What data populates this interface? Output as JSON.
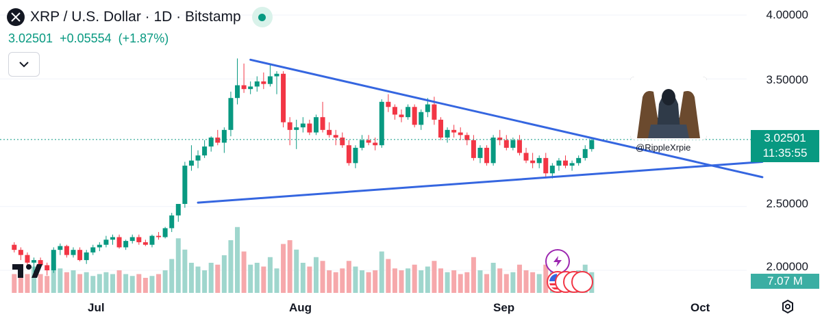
{
  "header": {
    "title": "XRP / U.S. Dollar · 1D · Bitstamp",
    "last_price": "3.02501",
    "change": "+0.05554",
    "change_pct": "(+1.87%)"
  },
  "price_tag": {
    "price": "3.02501",
    "countdown": "11:35:55"
  },
  "volume_tag": "7.07 M",
  "watermark": "@RippleXrpie",
  "colors": {
    "up": "#089981",
    "down": "#f23645",
    "up_vol": "#9fd6cd",
    "down_vol": "#f6a8ab",
    "trend": "#3566e0"
  },
  "icons": [
    "xrp-icon",
    "chevron-down-icon",
    "tradingview-logo-icon",
    "settings-icon",
    "bolt-icon",
    "us-flag-icon"
  ],
  "chart_data": {
    "type": "candlestick",
    "title": "XRP / U.S. Dollar · 1D · Bitstamp",
    "ylim": [
      1.75,
      4.2
    ],
    "y_ticks": [
      "4.00000",
      "3.50000",
      "2.50000",
      "2.00000"
    ],
    "y_tick_values": [
      4.0,
      3.5,
      2.5,
      2.0
    ],
    "x_labels": [
      "Jul",
      "Aug",
      "Sep",
      "Oct"
    ],
    "x_label_day_index": [
      15,
      46,
      77,
      107
    ],
    "start_day_index": 0,
    "ohlc": [
      [
        2.2,
        2.22,
        2.14,
        2.16
      ],
      [
        2.16,
        2.18,
        2.08,
        2.12
      ],
      [
        2.12,
        2.14,
        2.04,
        2.06
      ],
      [
        2.06,
        2.1,
        1.98,
        2.08
      ],
      [
        2.08,
        2.1,
        2.02,
        2.04
      ],
      [
        2.04,
        2.06,
        1.96,
        2.0
      ],
      [
        2.0,
        2.18,
        1.98,
        2.16
      ],
      [
        2.16,
        2.21,
        2.12,
        2.19
      ],
      [
        2.19,
        2.2,
        2.1,
        2.12
      ],
      [
        2.12,
        2.18,
        2.1,
        2.16
      ],
      [
        2.16,
        2.18,
        2.07,
        2.08
      ],
      [
        2.08,
        2.16,
        2.05,
        2.14
      ],
      [
        2.14,
        2.2,
        2.12,
        2.18
      ],
      [
        2.18,
        2.22,
        2.15,
        2.2
      ],
      [
        2.2,
        2.27,
        2.18,
        2.24
      ],
      [
        2.24,
        2.28,
        2.2,
        2.26
      ],
      [
        2.26,
        2.28,
        2.17,
        2.18
      ],
      [
        2.18,
        2.24,
        2.16,
        2.23
      ],
      [
        2.23,
        2.28,
        2.21,
        2.26
      ],
      [
        2.26,
        2.28,
        2.2,
        2.22
      ],
      [
        2.22,
        2.24,
        2.19,
        2.2
      ],
      [
        2.2,
        2.28,
        2.18,
        2.27
      ],
      [
        2.27,
        2.3,
        2.24,
        2.26
      ],
      [
        2.26,
        2.34,
        2.25,
        2.33
      ],
      [
        2.33,
        2.45,
        2.3,
        2.43
      ],
      [
        2.43,
        2.52,
        2.38,
        2.52
      ],
      [
        2.52,
        2.85,
        2.49,
        2.82
      ],
      [
        2.82,
        2.98,
        2.78,
        2.86
      ],
      [
        2.86,
        2.94,
        2.8,
        2.9
      ],
      [
        2.9,
        3.02,
        2.88,
        2.97
      ],
      [
        2.97,
        3.05,
        2.93,
        3.04
      ],
      [
        3.04,
        3.1,
        2.98,
        3.0
      ],
      [
        3.0,
        3.12,
        2.92,
        3.1
      ],
      [
        3.1,
        3.4,
        3.05,
        3.35
      ],
      [
        3.35,
        3.66,
        3.3,
        3.45
      ],
      [
        3.45,
        3.62,
        3.39,
        3.42
      ],
      [
        3.42,
        3.48,
        3.38,
        3.44
      ],
      [
        3.44,
        3.52,
        3.4,
        3.48
      ],
      [
        3.48,
        3.55,
        3.42,
        3.46
      ],
      [
        3.46,
        3.62,
        3.44,
        3.52
      ],
      [
        3.52,
        3.56,
        3.38,
        3.54
      ],
      [
        3.54,
        3.56,
        3.12,
        3.16
      ],
      [
        3.16,
        3.2,
        2.98,
        3.1
      ],
      [
        3.1,
        3.18,
        2.95,
        3.12
      ],
      [
        3.12,
        3.2,
        3.08,
        3.15
      ],
      [
        3.15,
        3.18,
        3.06,
        3.08
      ],
      [
        3.08,
        3.22,
        3.06,
        3.2
      ],
      [
        3.2,
        3.32,
        3.08,
        3.1
      ],
      [
        3.1,
        3.16,
        3.04,
        3.06
      ],
      [
        3.06,
        3.1,
        2.98,
        3.04
      ],
      [
        3.04,
        3.08,
        2.96,
        2.98
      ],
      [
        2.98,
        3.02,
        2.82,
        2.84
      ],
      [
        2.84,
        2.98,
        2.8,
        2.96
      ],
      [
        2.96,
        3.06,
        2.94,
        3.02
      ],
      [
        3.02,
        3.06,
        2.98,
        3.0
      ],
      [
        3.0,
        3.04,
        2.94,
        2.98
      ],
      [
        2.98,
        3.34,
        2.96,
        3.32
      ],
      [
        3.32,
        3.38,
        3.24,
        3.28
      ],
      [
        3.28,
        3.3,
        3.18,
        3.22
      ],
      [
        3.22,
        3.26,
        3.16,
        3.2
      ],
      [
        3.2,
        3.3,
        3.18,
        3.28
      ],
      [
        3.28,
        3.3,
        3.12,
        3.14
      ],
      [
        3.14,
        3.26,
        3.1,
        3.24
      ],
      [
        3.24,
        3.35,
        3.2,
        3.3
      ],
      [
        3.3,
        3.36,
        3.14,
        3.18
      ],
      [
        3.18,
        3.2,
        3.02,
        3.04
      ],
      [
        3.04,
        3.12,
        3.0,
        3.1
      ],
      [
        3.1,
        3.14,
        3.04,
        3.08
      ],
      [
        3.08,
        3.12,
        3.02,
        3.06
      ],
      [
        3.06,
        3.08,
        2.98,
        3.02
      ],
      [
        3.02,
        3.06,
        2.86,
        2.88
      ],
      [
        2.88,
        2.98,
        2.84,
        2.96
      ],
      [
        2.96,
        2.98,
        2.82,
        2.84
      ],
      [
        2.84,
        3.06,
        2.82,
        3.04
      ],
      [
        3.04,
        3.1,
        2.98,
        3.02
      ],
      [
        3.02,
        3.06,
        2.94,
        2.96
      ],
      [
        2.96,
        3.04,
        2.94,
        3.02
      ],
      [
        3.02,
        3.06,
        2.9,
        2.92
      ],
      [
        2.92,
        2.96,
        2.84,
        2.86
      ],
      [
        2.86,
        2.92,
        2.8,
        2.84
      ],
      [
        2.84,
        2.9,
        2.8,
        2.88
      ],
      [
        2.88,
        2.92,
        2.72,
        2.76
      ],
      [
        2.76,
        2.84,
        2.72,
        2.82
      ],
      [
        2.82,
        2.88,
        2.78,
        2.86
      ],
      [
        2.86,
        2.9,
        2.8,
        2.82
      ],
      [
        2.82,
        2.86,
        2.78,
        2.84
      ],
      [
        2.84,
        2.9,
        2.82,
        2.88
      ],
      [
        2.88,
        2.98,
        2.86,
        2.95
      ],
      [
        2.95,
        3.03,
        2.93,
        3.02
      ]
    ],
    "volume_scale": [
      0,
      4.0
    ],
    "volume": [
      1.0,
      1.1,
      1.0,
      1.4,
      1.0,
      0.9,
      1.5,
      1.3,
      1.1,
      1.2,
      1.0,
      1.1,
      0.9,
      1.0,
      1.1,
      1.0,
      1.2,
      1.0,
      0.9,
      1.0,
      0.8,
      0.9,
      1.0,
      1.2,
      1.8,
      2.9,
      2.3,
      1.6,
      1.4,
      1.2,
      1.6,
      1.5,
      2.0,
      2.8,
      3.5,
      2.2,
      1.5,
      1.6,
      1.4,
      1.9,
      1.3,
      2.6,
      2.8,
      2.3,
      1.6,
      1.4,
      1.9,
      1.7,
      1.2,
      1.1,
      1.3,
      1.7,
      1.4,
      1.2,
      1.1,
      1.2,
      2.2,
      1.8,
      1.3,
      1.2,
      1.3,
      1.5,
      1.2,
      1.4,
      1.7,
      1.3,
      1.1,
      1.2,
      1.0,
      1.1,
      1.9,
      1.2,
      1.0,
      1.6,
      1.3,
      1.0,
      1.1,
      1.5,
      1.2,
      1.1,
      1.0,
      1.5,
      1.3,
      1.2,
      1.0,
      1.1,
      1.2,
      1.5,
      1.1
    ],
    "trendlines": [
      {
        "name": "upper",
        "from": {
          "day": 36,
          "price": 3.65
        },
        "to": {
          "day": 114,
          "price": 2.73
        }
      },
      {
        "name": "lower",
        "from": {
          "day": 28,
          "price": 2.53
        },
        "to": {
          "day": 114,
          "price": 2.85
        }
      }
    ]
  }
}
